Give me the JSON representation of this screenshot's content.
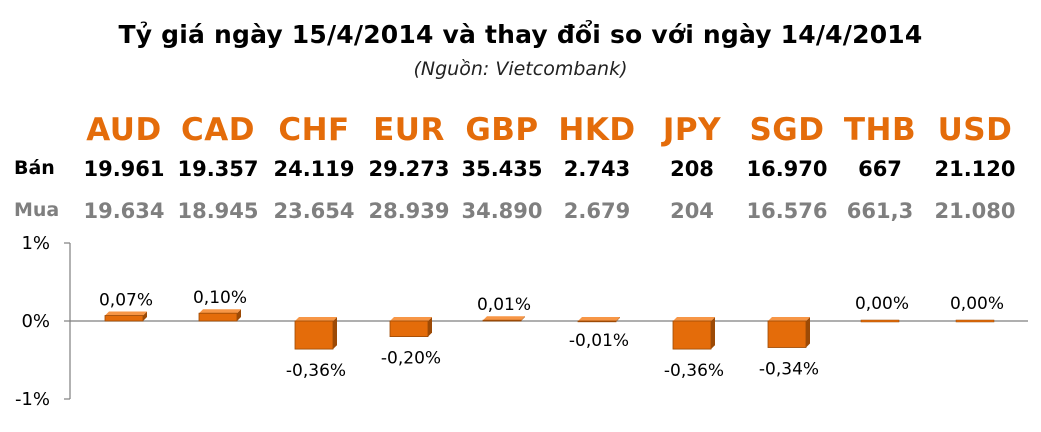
{
  "title": "Tỷ giá ngày 15/4/2014 và thay đổi so với ngày 14/4/2014",
  "subtitle": "(Nguồn: Vietcombank)",
  "rows": {
    "sell_label": "Bán",
    "buy_label": "Mua"
  },
  "currencies": [
    {
      "code": "AUD",
      "sell": "19.961",
      "buy": "19.634"
    },
    {
      "code": "CAD",
      "sell": "19.357",
      "buy": "18.945"
    },
    {
      "code": "CHF",
      "sell": "24.119",
      "buy": "23.654"
    },
    {
      "code": "EUR",
      "sell": "29.273",
      "buy": "28.939"
    },
    {
      "code": "GBP",
      "sell": "35.435",
      "buy": "34.890"
    },
    {
      "code": "HKD",
      "sell": "2.743",
      "buy": "2.679"
    },
    {
      "code": "JPY",
      "sell": "208",
      "buy": "204"
    },
    {
      "code": "SGD",
      "sell": "16.970",
      "buy": "16.576"
    },
    {
      "code": "THB",
      "sell": "667",
      "buy": "661,3"
    },
    {
      "code": "USD",
      "sell": "21.120",
      "buy": "21.080"
    }
  ],
  "chart_data": {
    "type": "bar",
    "categories": [
      "AUD",
      "CAD",
      "CHF",
      "EUR",
      "GBP",
      "HKD",
      "JPY",
      "SGD",
      "THB",
      "USD"
    ],
    "values": [
      0.07,
      0.1,
      -0.36,
      -0.2,
      0.01,
      -0.01,
      -0.36,
      -0.34,
      0.0,
      0.0
    ],
    "data_labels": [
      "0,07%",
      "0,10%",
      "-0,36%",
      "-0,20%",
      "0,01%",
      "-0,01%",
      "-0,36%",
      "-0,34%",
      "0,00%",
      "0,00%"
    ],
    "ylim": [
      -1,
      1
    ],
    "y_ticks": [
      1,
      0,
      -1
    ],
    "y_tick_labels": [
      "1%",
      "0%",
      "-1%"
    ],
    "grid": false,
    "colors": {
      "bar": "#e46c0a",
      "bar_dark": "#9c4a06",
      "code": "#e46c0a",
      "buy_text": "#7f7f7f",
      "axis": "#7f7f7f"
    }
  }
}
